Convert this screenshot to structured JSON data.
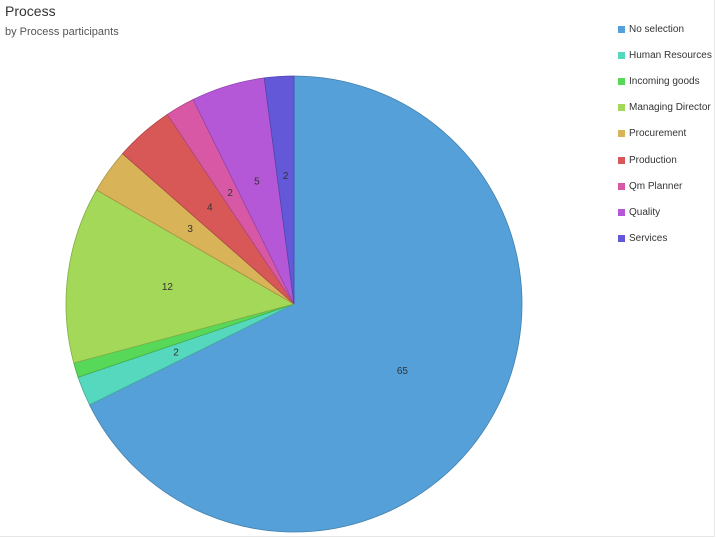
{
  "title": "Process",
  "subtitle": "by Process participants",
  "chart_data": {
    "type": "pie",
    "title": "Process",
    "subtitle": "by Process participants",
    "legend_position": "right",
    "start_angle": "12 o'clock, clockwise",
    "slices": [
      {
        "name": "No selection",
        "value": 65,
        "color": "#55a0d8",
        "label": "65"
      },
      {
        "name": "Human Resources",
        "value": 2,
        "color": "#55d8bd",
        "label": "2"
      },
      {
        "name": "Incoming goods",
        "value": 1,
        "color": "#58d858",
        "label": ""
      },
      {
        "name": "Managing Director",
        "value": 12,
        "color": "#a3d858",
        "label": "12"
      },
      {
        "name": "Procurement",
        "value": 3,
        "color": "#d8b358",
        "label": "3"
      },
      {
        "name": "Production",
        "value": 4,
        "color": "#d85858",
        "label": "4"
      },
      {
        "name": "Qm Planner",
        "value": 2,
        "color": "#d858a5",
        "label": "2"
      },
      {
        "name": "Quality",
        "value": 5,
        "color": "#b558d8",
        "label": "5"
      },
      {
        "name": "Services",
        "value": 2,
        "color": "#6358d8",
        "label": "2"
      }
    ]
  }
}
